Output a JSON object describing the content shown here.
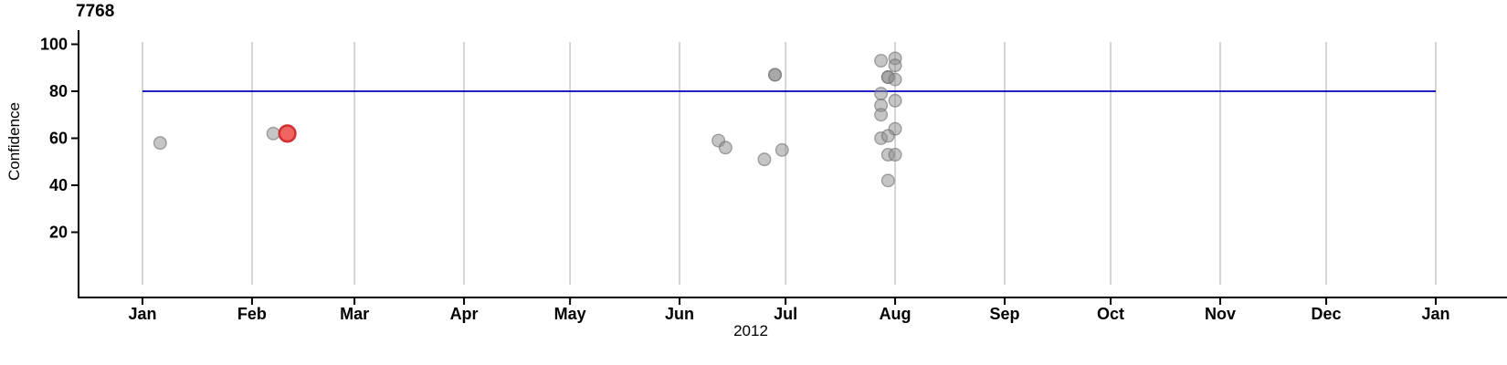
{
  "chart": {
    "title": "7768",
    "ylabel": "Confidence",
    "xlabel": "2012"
  },
  "chart_data": {
    "type": "scatter",
    "title": "7768",
    "xlabel": "2012",
    "ylabel": "Confidence",
    "x_axis": {
      "kind": "time",
      "year_label": "2012",
      "tick_labels": [
        "Jan",
        "Feb",
        "Mar",
        "Apr",
        "May",
        "Jun",
        "Jul",
        "Aug",
        "Sep",
        "Oct",
        "Nov",
        "Dec",
        "Jan"
      ],
      "tick_days": [
        0,
        31,
        60,
        91,
        121,
        152,
        182,
        213,
        244,
        274,
        305,
        335,
        366
      ],
      "range_days": [
        0,
        366
      ]
    },
    "y_axis": {
      "label": "Confidence",
      "ticks": [
        20,
        40,
        60,
        80,
        100
      ],
      "range": [
        -2,
        101
      ]
    },
    "grid": {
      "vertical": true,
      "horizontal": false
    },
    "legend": "none",
    "threshold_line": {
      "y": 80,
      "span_days": [
        0,
        366
      ]
    },
    "points": [
      {
        "date": "2012-01-06",
        "day": 5,
        "confidence": 58,
        "count": 1,
        "highlighted": false
      },
      {
        "date": "2012-02-07",
        "day": 37,
        "confidence": 62,
        "count": 1,
        "highlighted": false
      },
      {
        "date": "2012-02-11",
        "day": 41,
        "confidence": 62,
        "count": 1,
        "highlighted": true
      },
      {
        "date": "2012-06-12",
        "day": 163,
        "confidence": 59,
        "count": 1,
        "highlighted": false
      },
      {
        "date": "2012-06-14",
        "day": 165,
        "confidence": 56,
        "count": 1,
        "highlighted": false
      },
      {
        "date": "2012-06-25",
        "day": 176,
        "confidence": 51,
        "count": 1,
        "highlighted": false
      },
      {
        "date": "2012-06-28",
        "day": 179,
        "confidence": 87,
        "count": 2,
        "highlighted": false
      },
      {
        "date": "2012-06-30",
        "day": 181,
        "confidence": 55,
        "count": 1,
        "highlighted": false
      },
      {
        "date": "2012-07-28",
        "day": 209,
        "confidence": 93,
        "count": 1,
        "highlighted": false
      },
      {
        "date": "2012-08-01",
        "day": 213,
        "confidence": 94,
        "count": 1,
        "highlighted": false
      },
      {
        "date": "2012-08-01",
        "day": 213,
        "confidence": 91,
        "count": 1,
        "highlighted": false
      },
      {
        "date": "2012-07-30",
        "day": 211,
        "confidence": 86,
        "count": 2,
        "highlighted": false
      },
      {
        "date": "2012-08-01",
        "day": 213,
        "confidence": 85,
        "count": 1,
        "highlighted": false
      },
      {
        "date": "2012-07-28",
        "day": 209,
        "confidence": 79,
        "count": 1,
        "highlighted": false
      },
      {
        "date": "2012-08-01",
        "day": 213,
        "confidence": 76,
        "count": 1,
        "highlighted": false
      },
      {
        "date": "2012-07-28",
        "day": 209,
        "confidence": 74,
        "count": 1,
        "highlighted": false
      },
      {
        "date": "2012-07-28",
        "day": 209,
        "confidence": 70,
        "count": 1,
        "highlighted": false
      },
      {
        "date": "2012-08-01",
        "day": 213,
        "confidence": 64,
        "count": 1,
        "highlighted": false
      },
      {
        "date": "2012-07-28",
        "day": 209,
        "confidence": 60,
        "count": 1,
        "highlighted": false
      },
      {
        "date": "2012-07-30",
        "day": 211,
        "confidence": 61,
        "count": 1,
        "highlighted": false
      },
      {
        "date": "2012-07-30",
        "day": 211,
        "confidence": 53,
        "count": 1,
        "highlighted": false
      },
      {
        "date": "2012-08-01",
        "day": 213,
        "confidence": 53,
        "count": 1,
        "highlighted": false
      },
      {
        "date": "2012-07-30",
        "day": 211,
        "confidence": 42,
        "count": 1,
        "highlighted": false
      }
    ],
    "colors": {
      "threshold_line": "#0000bf",
      "point_fill": "#8c8c8c",
      "point_stroke": "#707070",
      "highlight_fill": "#ee5351",
      "highlight_stroke": "#cf3333",
      "grid": "#d0d0d0",
      "axis": "#000000"
    }
  }
}
